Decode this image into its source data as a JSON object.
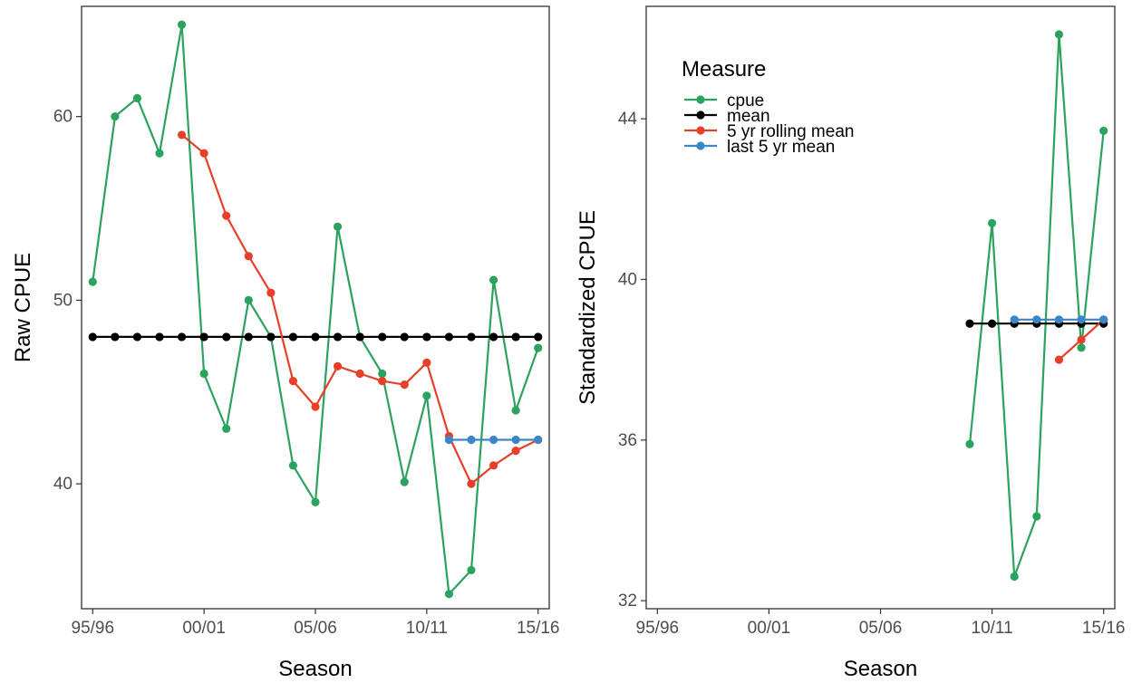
{
  "chart_data": [
    {
      "type": "line",
      "xlabel": "Season",
      "ylabel": "Raw CPUE",
      "x_tick_labels": [
        "95/96",
        "00/01",
        "05/06",
        "10/11",
        "15/16"
      ],
      "x_tick_index": [
        0,
        5,
        10,
        15,
        20
      ],
      "y_ticks": [
        40,
        50,
        60
      ],
      "ylim": [
        33.2,
        66
      ],
      "xlim": [
        -0.5,
        20.5
      ],
      "series": [
        {
          "name": "cpue",
          "color": "#2ca25f",
          "start": 0,
          "values": [
            51,
            60,
            61,
            58,
            65,
            46,
            43,
            50,
            48,
            41,
            39,
            54,
            48,
            46,
            40.1,
            44.8,
            34,
            35.3,
            51.1,
            44,
            47.4
          ]
        },
        {
          "name": "mean",
          "color": "#000000",
          "start": 0,
          "values": [
            48,
            48,
            48,
            48,
            48,
            48,
            48,
            48,
            48,
            48,
            48,
            48,
            48,
            48,
            48,
            48,
            48,
            48,
            48,
            48,
            48
          ]
        },
        {
          "name": "5 yr rolling mean",
          "color": "#e6402a",
          "start": 4,
          "values": [
            59,
            58,
            54.6,
            52.4,
            50.4,
            45.6,
            44.2,
            46.4,
            46,
            45.6,
            45.4,
            46.6,
            42.6,
            40,
            41,
            41.8,
            42.4
          ]
        },
        {
          "name": "last 5 yr mean",
          "color": "#3a86c8",
          "start": 16,
          "values": [
            42.4,
            42.4,
            42.4,
            42.4,
            42.4
          ]
        }
      ]
    },
    {
      "type": "line",
      "xlabel": "Season",
      "ylabel": "Standardized CPUE",
      "x_tick_labels": [
        "95/96",
        "00/01",
        "05/06",
        "10/11",
        "15/16"
      ],
      "x_tick_index": [
        0,
        5,
        10,
        15,
        20
      ],
      "y_ticks": [
        32,
        36,
        40,
        44
      ],
      "ylim": [
        31.8,
        46.8
      ],
      "xlim": [
        -0.5,
        20.5
      ],
      "legend": {
        "title": "Measure",
        "position": "top-left"
      },
      "series": [
        {
          "name": "cpue",
          "color": "#2ca25f",
          "start": 14,
          "values": [
            35.9,
            41.4,
            32.6,
            34.1,
            46.1,
            38.3,
            43.7
          ]
        },
        {
          "name": "mean",
          "color": "#000000",
          "start": 14,
          "values": [
            38.9,
            38.9,
            38.9,
            38.9,
            38.9,
            38.9,
            38.9
          ]
        },
        {
          "name": "5 yr rolling mean",
          "color": "#e6402a",
          "start": 18,
          "values": [
            38,
            38.5,
            39
          ]
        },
        {
          "name": "last 5 yr mean",
          "color": "#3a86c8",
          "start": 16,
          "values": [
            39,
            39,
            39,
            39,
            39
          ]
        }
      ]
    }
  ]
}
